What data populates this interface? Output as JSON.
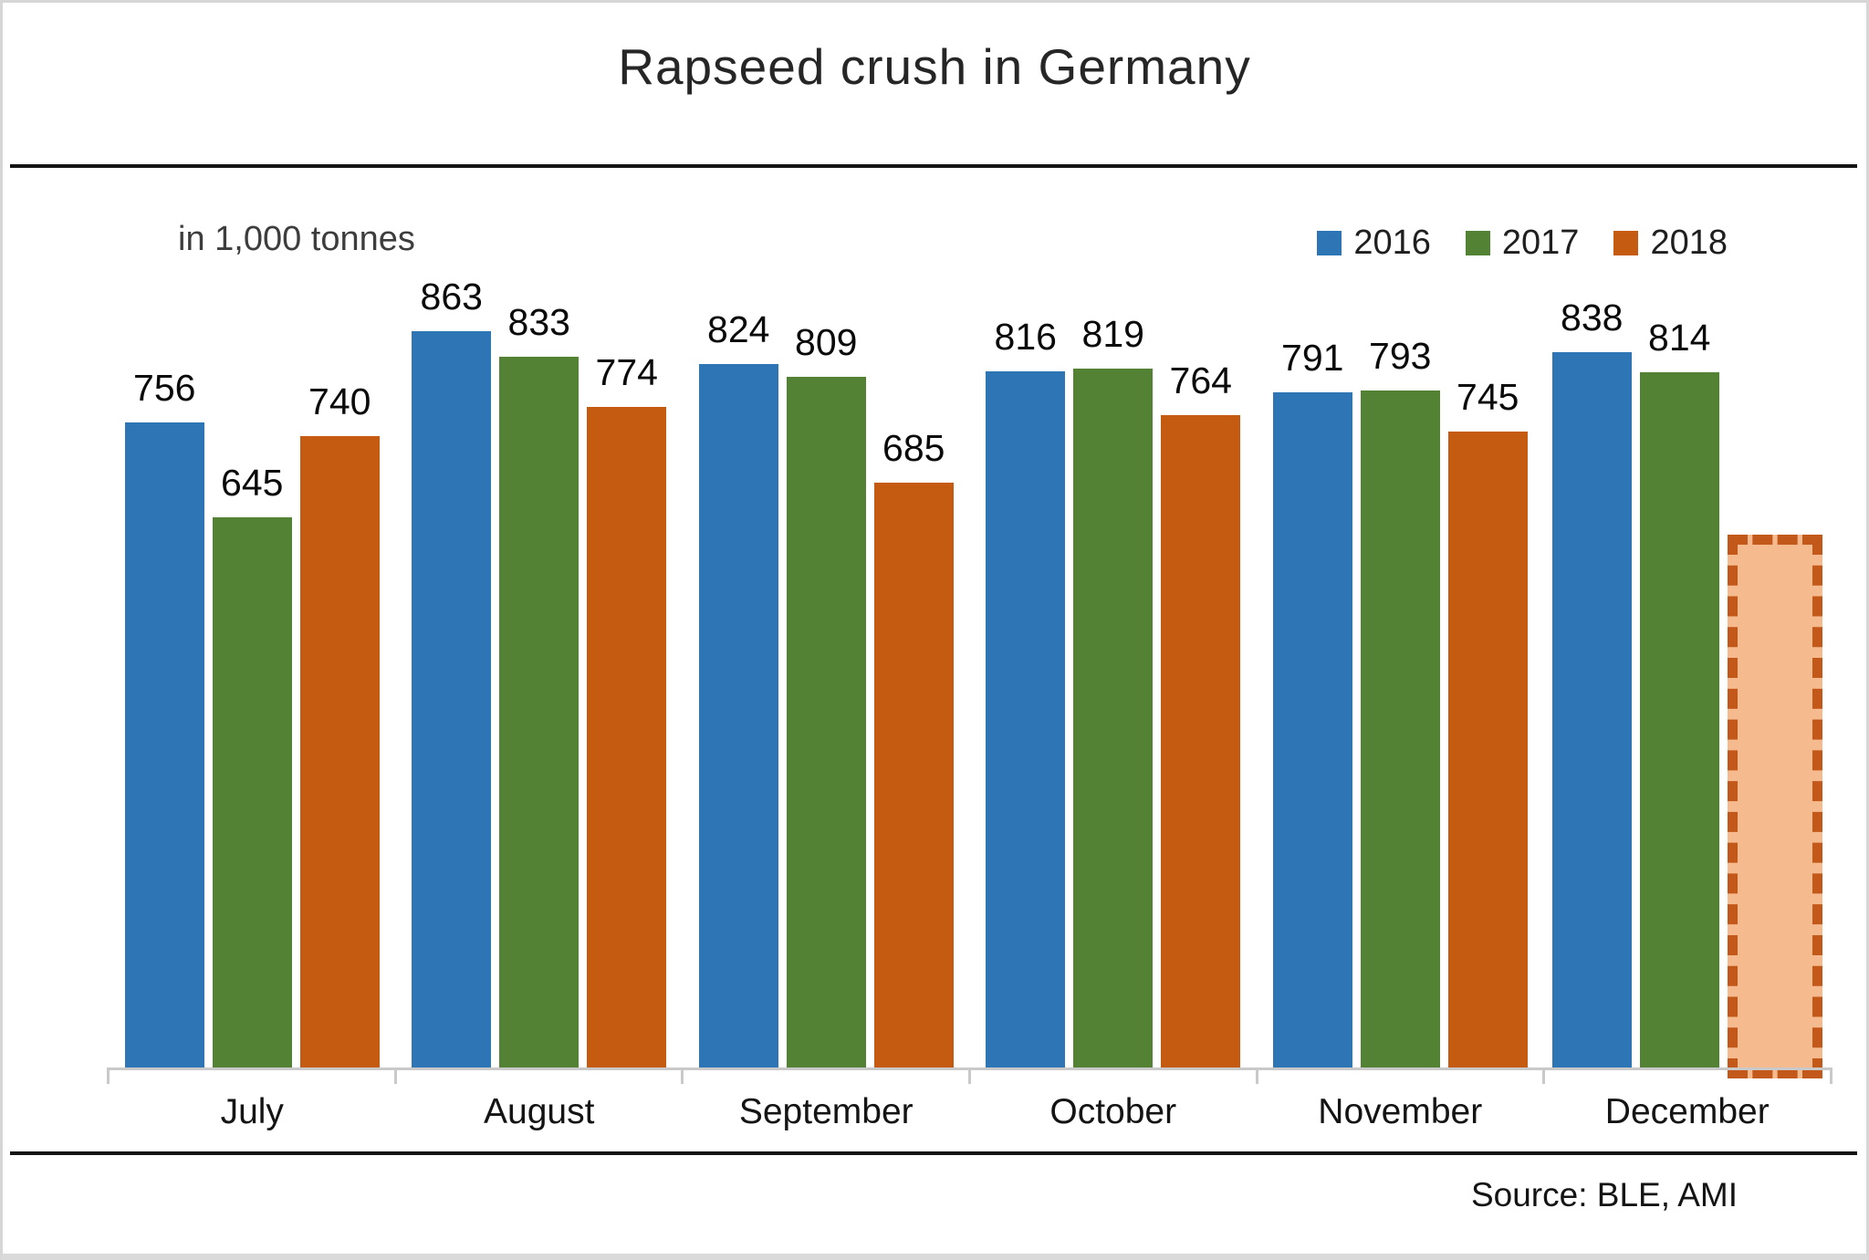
{
  "source_note": "Source: BLE, AMI",
  "chart_data": {
    "type": "bar",
    "title": "Rapseed crush in Germany",
    "units_label": "in 1,000 tonnes",
    "categories": [
      "July",
      "August",
      "September",
      "October",
      "November",
      "December"
    ],
    "series": [
      {
        "name": "2016",
        "color": "#2E75B6",
        "values": [
          756,
          863,
          824,
          816,
          791,
          838
        ]
      },
      {
        "name": "2017",
        "color": "#548235",
        "values": [
          645,
          833,
          809,
          819,
          793,
          814
        ]
      },
      {
        "name": "2018",
        "color": "#C55A11",
        "values": [
          740,
          774,
          685,
          764,
          745,
          null
        ]
      }
    ],
    "forecast_bar": {
      "category": "December",
      "series": "2018",
      "estimated_value": 625,
      "label": "",
      "fill_color": "#F5BA8E",
      "border_color": "#C2581A",
      "border_style": "dashed"
    },
    "legend": {
      "position": "top-right",
      "entries": [
        "2016",
        "2017",
        "2018"
      ]
    },
    "value_labels_shown": true,
    "value_axis_shown": false,
    "grid": false,
    "baseline": 0,
    "axis_color": "#C9C9C9"
  }
}
